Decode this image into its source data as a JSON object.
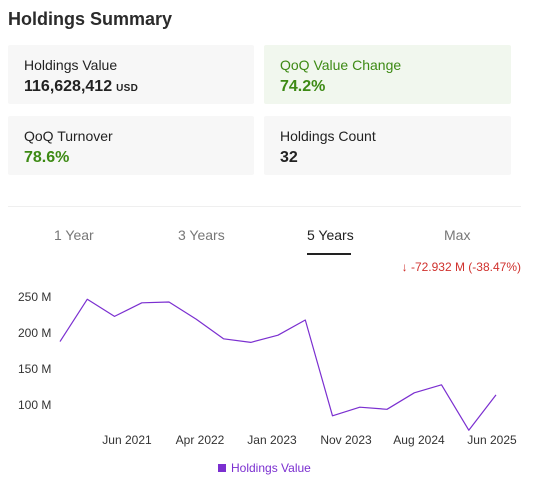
{
  "header": {
    "title": "Holdings Summary"
  },
  "cards": {
    "holdings_value": {
      "label": "Holdings Value",
      "value": "116,628,412",
      "unit": "USD"
    },
    "qoq_value_change": {
      "label": "QoQ Value Change",
      "value": "74.2%"
    },
    "qoq_turnover": {
      "label": "QoQ Turnover",
      "value": "78.6%"
    },
    "holdings_count": {
      "label": "Holdings Count",
      "value": "32"
    }
  },
  "tabs": {
    "t1": "1 Year",
    "t3": "3 Years",
    "t5": "5 Years",
    "max": "Max",
    "active": "5 Years"
  },
  "change": {
    "text": "↓ -72.932 M (-38.47%)"
  },
  "colors": {
    "accent_green": "#3d8a14",
    "negative_red": "#d0312d",
    "series": "#7b2fd0"
  },
  "chart_data": {
    "type": "line",
    "series": [
      {
        "name": "Holdings Value",
        "values": [
          188,
          247,
          223,
          242,
          243,
          219,
          192,
          187,
          197,
          218,
          85,
          97,
          94,
          117,
          128,
          65,
          114
        ]
      }
    ],
    "x_tick_labels": [
      "Jun 2021",
      "Apr 2022",
      "Jan 2023",
      "Nov 2023",
      "Aug 2024",
      "Jun 2025"
    ],
    "y_tick_labels": [
      "100 M",
      "150 M",
      "200 M",
      "250 M"
    ],
    "y_ticks": [
      100,
      150,
      200,
      250
    ],
    "ylim": [
      60,
      270
    ],
    "grid": false,
    "legend": "bottom"
  }
}
